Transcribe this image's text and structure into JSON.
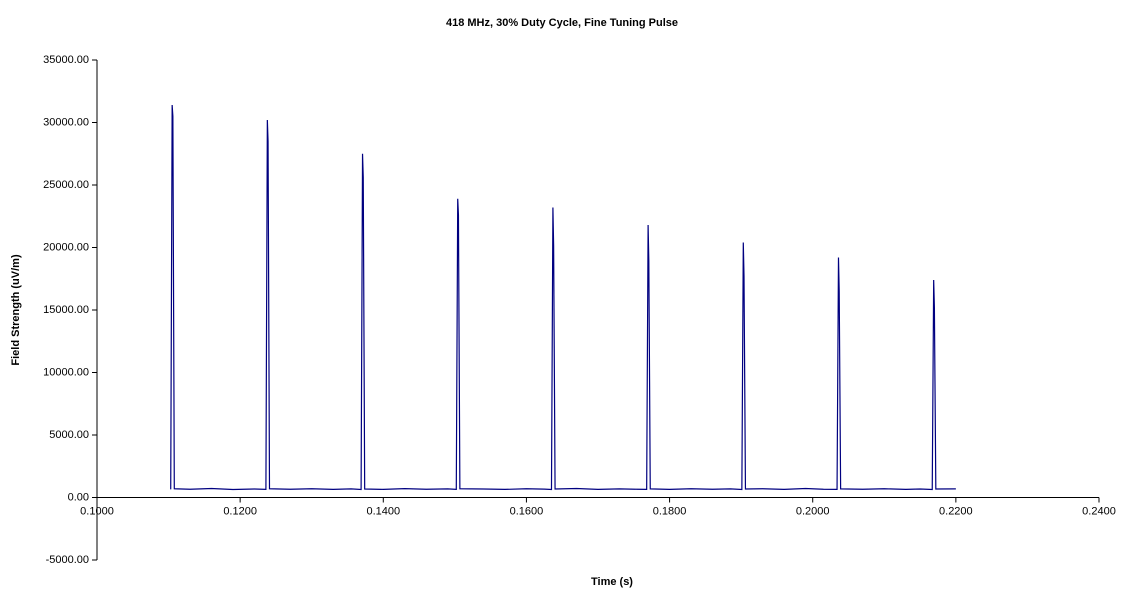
{
  "chart_data": {
    "type": "line",
    "title": "418 MHz, 30% Duty Cycle, Fine Tuning Pulse",
    "x_label": "Time (s)",
    "y_label": "Field Strength (uV/m)",
    "xlim": [
      0.1,
      0.24
    ],
    "xticks": [
      {
        "value": 0.1,
        "label": "0.1000"
      },
      {
        "value": 0.12,
        "label": "0.1200"
      },
      {
        "value": 0.14,
        "label": "0.1400"
      },
      {
        "value": 0.16,
        "label": "0.1600"
      },
      {
        "value": 0.18,
        "label": "0.1800"
      },
      {
        "value": 0.2,
        "label": "0.2000"
      },
      {
        "value": 0.22,
        "label": "0.2200"
      },
      {
        "value": 0.24,
        "label": "0.2400"
      }
    ],
    "ylim": [
      -5000,
      35000
    ],
    "yticks": [
      {
        "value": -5000,
        "label": "-5000.00"
      },
      {
        "value": 0,
        "label": "0.00"
      },
      {
        "value": 5000,
        "label": "5000.00"
      },
      {
        "value": 10000,
        "label": "10000.00"
      },
      {
        "value": 15000,
        "label": "15000.00"
      },
      {
        "value": 20000,
        "label": "20000.00"
      },
      {
        "value": 25000,
        "label": "25000.00"
      },
      {
        "value": 30000,
        "label": "30000.00"
      },
      {
        "value": 35000,
        "label": "35000.00"
      }
    ],
    "grid": false,
    "x": [
      0.1103,
      0.1105,
      0.1106,
      0.1108,
      0.113,
      0.116,
      0.119,
      0.122,
      0.1236,
      0.1238,
      0.1239,
      0.1241,
      0.127,
      0.13,
      0.133,
      0.1355,
      0.1369,
      0.1371,
      0.1372,
      0.1374,
      0.14,
      0.143,
      0.146,
      0.149,
      0.1502,
      0.1504,
      0.1505,
      0.1507,
      0.154,
      0.157,
      0.16,
      0.1625,
      0.1635,
      0.1637,
      0.1638,
      0.164,
      0.167,
      0.17,
      0.173,
      0.1755,
      0.1768,
      0.177,
      0.1771,
      0.1773,
      0.18,
      0.183,
      0.186,
      0.1885,
      0.1901,
      0.1903,
      0.1904,
      0.1906,
      0.193,
      0.196,
      0.199,
      0.2015,
      0.2034,
      0.2036,
      0.2037,
      0.2039,
      0.207,
      0.21,
      0.213,
      0.215,
      0.2167,
      0.2169,
      0.217,
      0.2172,
      0.22
    ],
    "series": [
      {
        "color": "#000080",
        "values": [
          650,
          31400,
          30500,
          700,
          660,
          720,
          640,
          680,
          650,
          30200,
          28500,
          700,
          660,
          700,
          650,
          690,
          640,
          27500,
          25600,
          680,
          650,
          710,
          660,
          690,
          650,
          23900,
          22600,
          700,
          680,
          650,
          700,
          670,
          640,
          23200,
          20100,
          680,
          720,
          650,
          690,
          660,
          650,
          21800,
          18900,
          690,
          650,
          700,
          660,
          690,
          640,
          20400,
          17700,
          680,
          700,
          650,
          720,
          660,
          650,
          19200,
          16500,
          690,
          660,
          700,
          650,
          680,
          640,
          17400,
          15200,
          680,
          690
        ]
      }
    ]
  }
}
